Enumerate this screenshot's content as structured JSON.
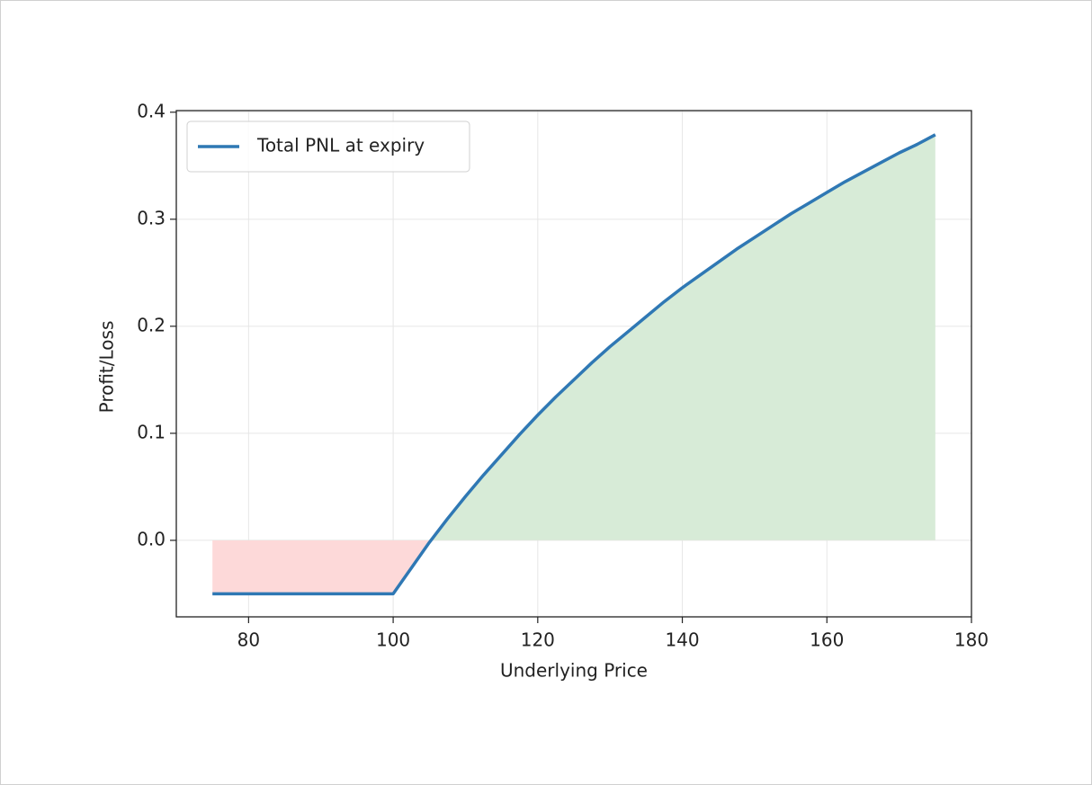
{
  "chart_data": {
    "type": "line",
    "xlabel": "Underlying Price",
    "ylabel": "Profit/Loss",
    "x": [
      75,
      100,
      102.5,
      105,
      107.5,
      110,
      112.5,
      115,
      117.5,
      120,
      122.5,
      125,
      127.5,
      130,
      132.5,
      135,
      137.5,
      140,
      142.5,
      145,
      147.5,
      150,
      152.5,
      155,
      157.5,
      160,
      162.5,
      165,
      167.5,
      170,
      172.5,
      175
    ],
    "series": [
      {
        "name": "Total PNL at expiry",
        "color": "#2f78b4",
        "values": [
          -0.05,
          -0.05,
          -0.026,
          -0.002,
          0.02,
          0.041,
          0.061,
          0.08,
          0.099,
          0.117,
          0.134,
          0.15,
          0.166,
          0.181,
          0.195,
          0.209,
          0.223,
          0.236,
          0.248,
          0.26,
          0.272,
          0.283,
          0.294,
          0.305,
          0.315,
          0.325,
          0.335,
          0.344,
          0.353,
          0.362,
          0.37,
          0.379
        ]
      }
    ],
    "profit_color": "#d7ebd7",
    "loss_color": "#fdd9d9",
    "xlim": [
      70,
      180
    ],
    "ylim": [
      -0.0715,
      0.4015
    ],
    "xticks": [
      80,
      100,
      120,
      140,
      160,
      180
    ],
    "yticks": [
      {
        "value": 0,
        "label": "0.0"
      },
      0.1,
      0.2,
      0.3,
      0.4
    ],
    "grid": true,
    "legend": "upper left"
  }
}
